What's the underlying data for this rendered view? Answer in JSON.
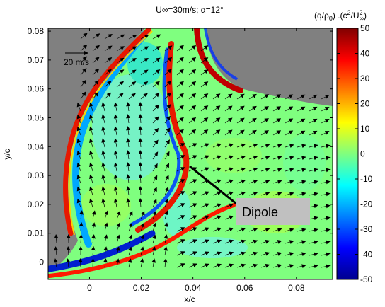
{
  "chart_data": {
    "type": "heatmap",
    "title": "U∞=30m/s; α=12°",
    "xlabel": "x/c",
    "ylabel": "y/c",
    "xlim": [
      -0.016,
      0.094
    ],
    "ylim": [
      -0.006,
      0.081
    ],
    "x_ticks": [
      "0",
      "0.02",
      "0.04",
      "0.06",
      "0.08"
    ],
    "x_tick_values": [
      0,
      0.02,
      0.04,
      0.06,
      0.08
    ],
    "y_ticks": [
      "0",
      "0.01",
      "0.02",
      "0.03",
      "0.04",
      "0.05",
      "0.06",
      "0.07",
      "0.08"
    ],
    "y_tick_values": [
      0,
      0.01,
      0.02,
      0.03,
      0.04,
      0.05,
      0.06,
      0.07,
      0.08
    ],
    "colorbar": {
      "label": "(q/ρ0) .(c²/U∞²)",
      "min": -50,
      "max": 50,
      "ticks": [
        "50",
        "40",
        "30",
        "20",
        "10",
        "0",
        "-10",
        "-20",
        "-30",
        "-40",
        "-50"
      ],
      "tick_values": [
        50,
        40,
        30,
        20,
        10,
        0,
        -10,
        -20,
        -30,
        -40,
        -50
      ],
      "colormap": "jet"
    },
    "reference_vector_label": "20 m/s",
    "annotation": "Dipole",
    "colors": {
      "masked": "#808080",
      "field_background": "#7fff7f",
      "positive_band": "#ff2000",
      "negative_band": "#0050ff"
    }
  }
}
